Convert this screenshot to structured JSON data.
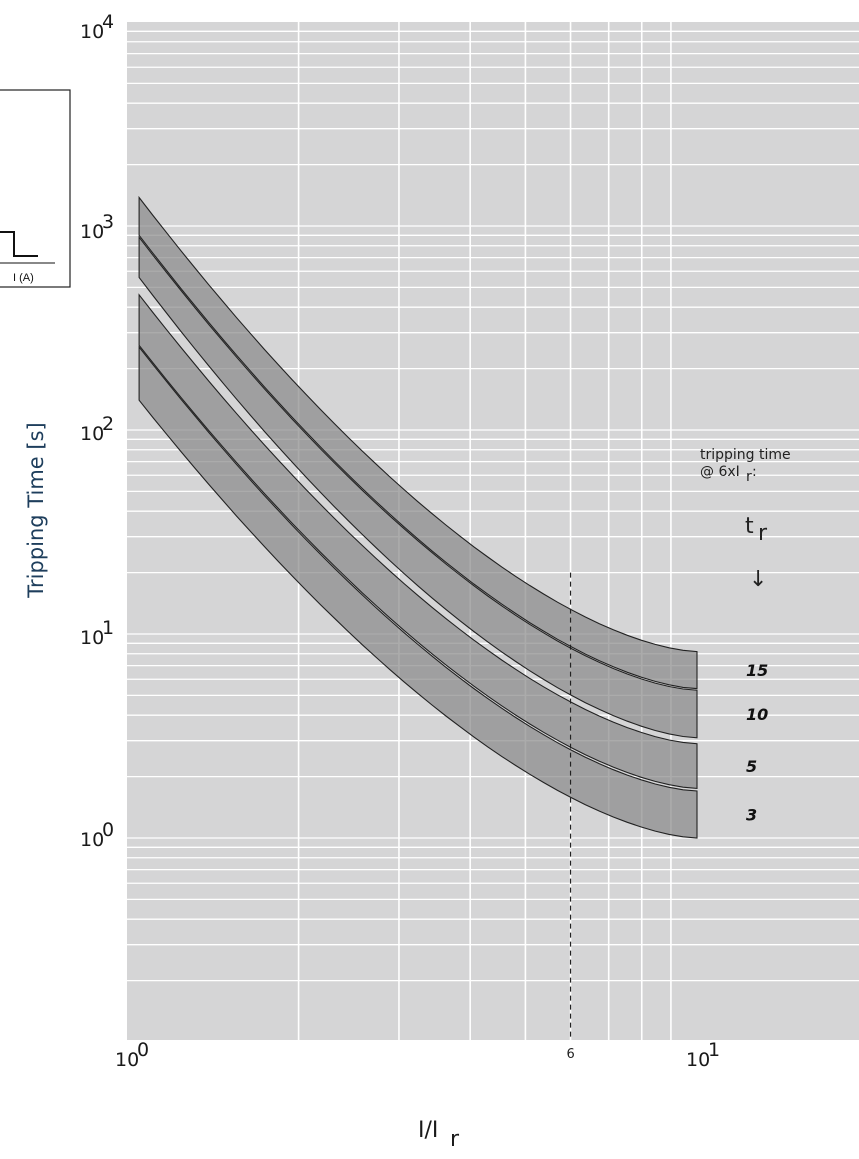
{
  "chart_data": {
    "type": "line",
    "title": "",
    "xlabel": "I/I",
    "xlabel_sub": "r",
    "ylabel": "Tripping Time [s]",
    "xscale": "log",
    "yscale": "log",
    "xlim": [
      1,
      20
    ],
    "ylim": [
      0.1,
      10000
    ],
    "x_ticks": [
      {
        "base": "10",
        "exp": "0",
        "value": 1
      },
      {
        "base": "10",
        "exp": "1",
        "value": 10
      }
    ],
    "y_ticks": [
      {
        "base": "10",
        "exp": "4",
        "value": 10000
      },
      {
        "base": "10",
        "exp": "3",
        "value": 1000
      },
      {
        "base": "10",
        "exp": "2",
        "value": 100
      },
      {
        "base": "10",
        "exp": "1",
        "value": 10
      },
      {
        "base": "10",
        "exp": "0",
        "value": 1
      }
    ],
    "grid": true,
    "grid_color": "#ffffff",
    "background_color": "#d5d5d6",
    "band_fill": "#8b8b8b",
    "reference_line": {
      "x": 6,
      "label": "6"
    },
    "bands": [
      {
        "name": "15",
        "upper": {
          "x": [
            1.05,
            10
          ],
          "y": [
            1380,
            8.2
          ]
        },
        "lower": {
          "x": [
            1.05,
            10
          ],
          "y": [
            900,
            5.4
          ]
        }
      },
      {
        "name": "10",
        "upper": {
          "x": [
            1.05,
            10
          ],
          "y": [
            880,
            5.3
          ]
        },
        "lower": {
          "x": [
            1.05,
            10
          ],
          "y": [
            560,
            3.1
          ]
        }
      },
      {
        "name": "5",
        "upper": {
          "x": [
            1.05,
            10
          ],
          "y": [
            460,
            2.9
          ]
        },
        "lower": {
          "x": [
            1.05,
            10
          ],
          "y": [
            260,
            1.75
          ]
        }
      },
      {
        "name": "3",
        "upper": {
          "x": [
            1.05,
            10
          ],
          "y": [
            255,
            1.7
          ]
        },
        "lower": {
          "x": [
            1.05,
            10
          ],
          "y": [
            140,
            1.0
          ]
        }
      }
    ],
    "annotation": {
      "line1": "tripping time",
      "line2_prefix": "@ 6xI",
      "line2_sub": "r",
      "line2_suffix": ":",
      "symbol": "t",
      "symbol_sub": "r",
      "arrow": "↓"
    }
  },
  "inset": {
    "axis_label": "I (A)"
  }
}
